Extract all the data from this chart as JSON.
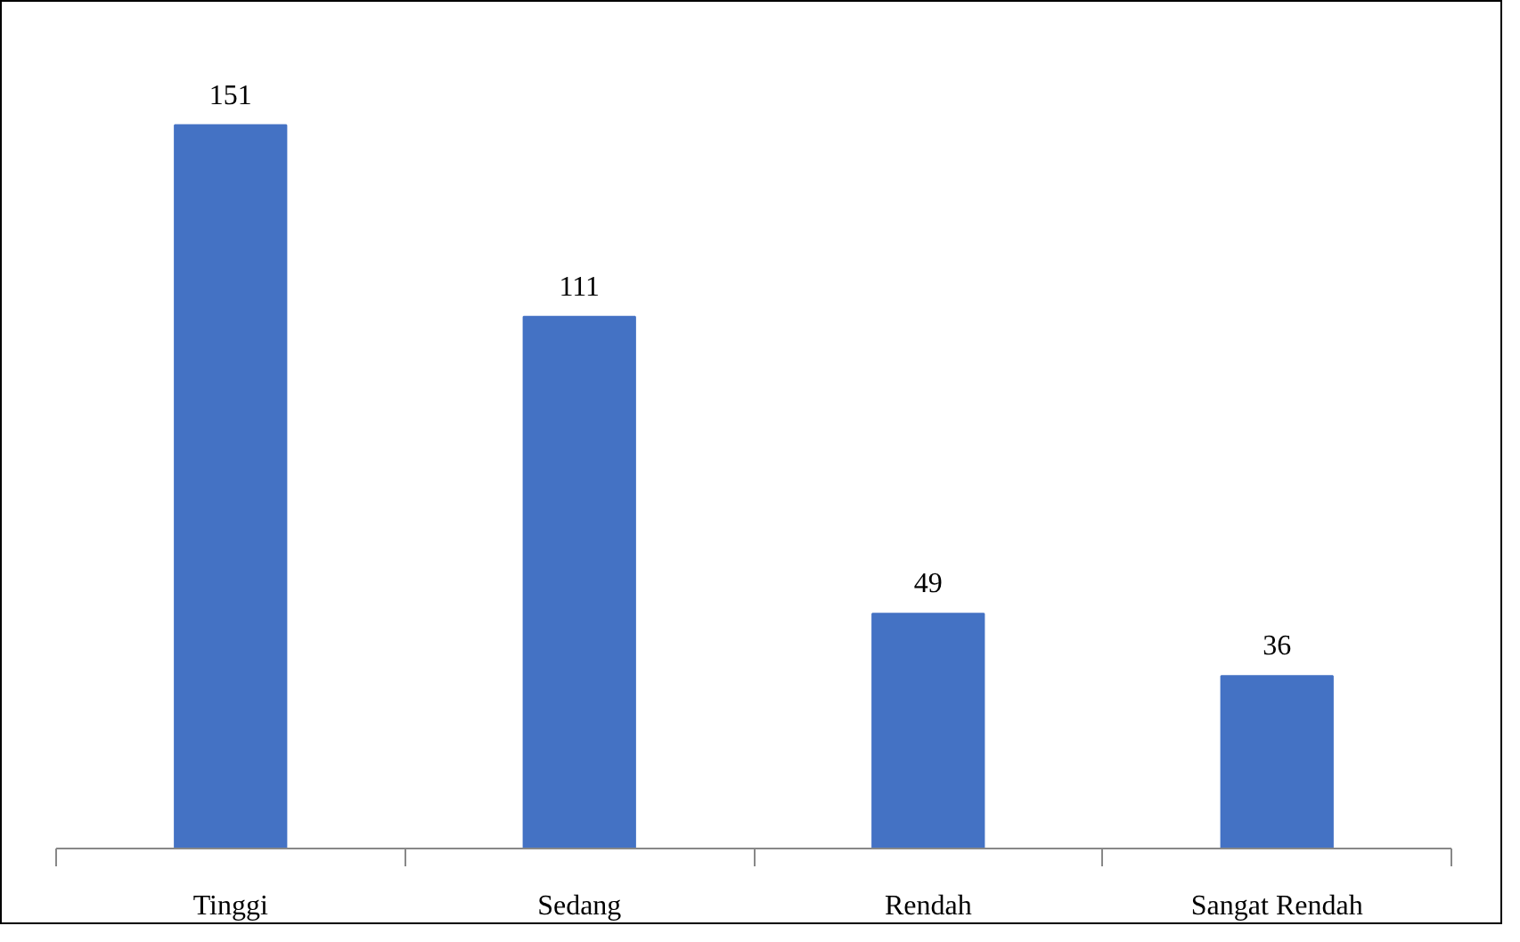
{
  "chart_data": {
    "type": "bar",
    "categories": [
      "Tinggi",
      "Sedang",
      "Rendah",
      "Sangat Rendah"
    ],
    "values": [
      151,
      111,
      49,
      36
    ],
    "color": "#4472c4",
    "data_labels": true
  }
}
